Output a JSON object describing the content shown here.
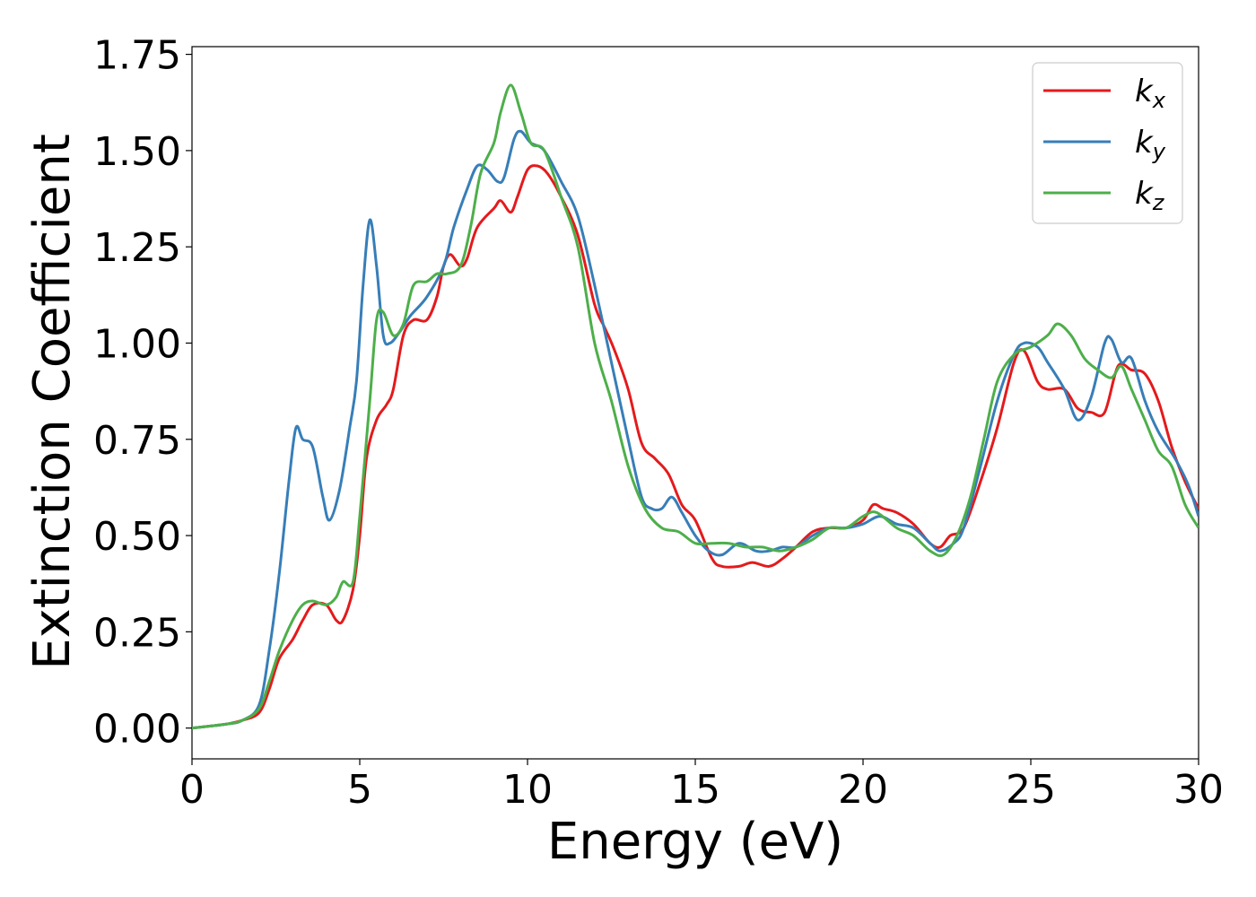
{
  "chart_data": {
    "type": "line",
    "xlabel": "Energy (eV)",
    "ylabel": "Extinction Coefficient",
    "xlim": [
      0,
      30
    ],
    "ylim": [
      -0.08,
      1.77
    ],
    "xticks": [
      0,
      5,
      10,
      15,
      20,
      25,
      30
    ],
    "xtick_labels": [
      "0",
      "5",
      "10",
      "15",
      "20",
      "25",
      "30"
    ],
    "yticks": [
      0,
      0.25,
      0.5,
      0.75,
      1.0,
      1.25,
      1.5,
      1.75
    ],
    "ytick_labels": [
      "0.00",
      "0.25",
      "0.50",
      "0.75",
      "1.00",
      "1.25",
      "1.50",
      "1.75"
    ],
    "grid": false,
    "legend_position": "top-right",
    "series": [
      {
        "name": "k_x",
        "label_base": "k",
        "label_sub": "x",
        "color": "#e41a1c",
        "points": [
          [
            0,
            0
          ],
          [
            1,
            0.01
          ],
          [
            1.5,
            0.02
          ],
          [
            2,
            0.04
          ],
          [
            2.3,
            0.1
          ],
          [
            2.6,
            0.18
          ],
          [
            3,
            0.23
          ],
          [
            3.3,
            0.28
          ],
          [
            3.6,
            0.32
          ],
          [
            4,
            0.32
          ],
          [
            4.3,
            0.28
          ],
          [
            4.5,
            0.28
          ],
          [
            4.8,
            0.36
          ],
          [
            5,
            0.5
          ],
          [
            5.2,
            0.7
          ],
          [
            5.5,
            0.8
          ],
          [
            5.8,
            0.84
          ],
          [
            6,
            0.88
          ],
          [
            6.3,
            1.02
          ],
          [
            6.6,
            1.06
          ],
          [
            7,
            1.06
          ],
          [
            7.3,
            1.12
          ],
          [
            7.5,
            1.2
          ],
          [
            7.7,
            1.23
          ],
          [
            8,
            1.2
          ],
          [
            8.2,
            1.22
          ],
          [
            8.5,
            1.3
          ],
          [
            9,
            1.35
          ],
          [
            9.2,
            1.37
          ],
          [
            9.5,
            1.34
          ],
          [
            9.7,
            1.38
          ],
          [
            10,
            1.45
          ],
          [
            10.3,
            1.46
          ],
          [
            10.6,
            1.44
          ],
          [
            11,
            1.38
          ],
          [
            11.5,
            1.28
          ],
          [
            12,
            1.1
          ],
          [
            12.3,
            1.04
          ],
          [
            12.6,
            0.98
          ],
          [
            13,
            0.88
          ],
          [
            13.4,
            0.74
          ],
          [
            13.8,
            0.7
          ],
          [
            14.2,
            0.66
          ],
          [
            14.6,
            0.58
          ],
          [
            15,
            0.54
          ],
          [
            15.5,
            0.44
          ],
          [
            15.8,
            0.42
          ],
          [
            16.3,
            0.42
          ],
          [
            16.7,
            0.43
          ],
          [
            17.2,
            0.42
          ],
          [
            17.6,
            0.44
          ],
          [
            18,
            0.47
          ],
          [
            18.5,
            0.51
          ],
          [
            19,
            0.52
          ],
          [
            19.5,
            0.52
          ],
          [
            20,
            0.54
          ],
          [
            20.3,
            0.58
          ],
          [
            20.6,
            0.57
          ],
          [
            21,
            0.56
          ],
          [
            21.5,
            0.53
          ],
          [
            22,
            0.48
          ],
          [
            22.3,
            0.47
          ],
          [
            22.6,
            0.5
          ],
          [
            23,
            0.52
          ],
          [
            23.5,
            0.64
          ],
          [
            24,
            0.78
          ],
          [
            24.5,
            0.95
          ],
          [
            24.8,
            0.98
          ],
          [
            25.2,
            0.9
          ],
          [
            25.5,
            0.88
          ],
          [
            26,
            0.88
          ],
          [
            26.4,
            0.83
          ],
          [
            26.8,
            0.82
          ],
          [
            27.2,
            0.82
          ],
          [
            27.6,
            0.94
          ],
          [
            28,
            0.93
          ],
          [
            28.4,
            0.92
          ],
          [
            28.8,
            0.85
          ],
          [
            29.2,
            0.73
          ],
          [
            29.6,
            0.64
          ],
          [
            30,
            0.57
          ]
        ]
      },
      {
        "name": "k_y",
        "label_base": "k",
        "label_sub": "y",
        "color": "#377eb8",
        "points": [
          [
            0,
            0
          ],
          [
            1,
            0.01
          ],
          [
            1.5,
            0.02
          ],
          [
            2,
            0.06
          ],
          [
            2.3,
            0.2
          ],
          [
            2.6,
            0.4
          ],
          [
            2.9,
            0.65
          ],
          [
            3.1,
            0.78
          ],
          [
            3.3,
            0.75
          ],
          [
            3.6,
            0.73
          ],
          [
            3.9,
            0.6
          ],
          [
            4.1,
            0.54
          ],
          [
            4.4,
            0.62
          ],
          [
            4.7,
            0.78
          ],
          [
            4.9,
            0.9
          ],
          [
            5.1,
            1.15
          ],
          [
            5.3,
            1.32
          ],
          [
            5.5,
            1.2
          ],
          [
            5.7,
            1.02
          ],
          [
            5.9,
            1.0
          ],
          [
            6.2,
            1.03
          ],
          [
            6.5,
            1.07
          ],
          [
            7,
            1.12
          ],
          [
            7.5,
            1.2
          ],
          [
            7.8,
            1.3
          ],
          [
            8.2,
            1.4
          ],
          [
            8.5,
            1.46
          ],
          [
            8.8,
            1.45
          ],
          [
            9.1,
            1.42
          ],
          [
            9.3,
            1.43
          ],
          [
            9.6,
            1.53
          ],
          [
            9.8,
            1.55
          ],
          [
            10.1,
            1.52
          ],
          [
            10.5,
            1.5
          ],
          [
            11,
            1.42
          ],
          [
            11.5,
            1.33
          ],
          [
            12,
            1.15
          ],
          [
            12.5,
            0.95
          ],
          [
            13,
            0.75
          ],
          [
            13.4,
            0.6
          ],
          [
            13.7,
            0.57
          ],
          [
            14,
            0.57
          ],
          [
            14.3,
            0.6
          ],
          [
            14.6,
            0.56
          ],
          [
            15,
            0.5
          ],
          [
            15.4,
            0.46
          ],
          [
            15.8,
            0.45
          ],
          [
            16.3,
            0.48
          ],
          [
            16.8,
            0.46
          ],
          [
            17.2,
            0.46
          ],
          [
            17.6,
            0.47
          ],
          [
            18,
            0.47
          ],
          [
            18.5,
            0.5
          ],
          [
            19,
            0.52
          ],
          [
            19.5,
            0.52
          ],
          [
            20,
            0.53
          ],
          [
            20.5,
            0.55
          ],
          [
            21,
            0.53
          ],
          [
            21.5,
            0.52
          ],
          [
            22,
            0.48
          ],
          [
            22.3,
            0.46
          ],
          [
            22.7,
            0.48
          ],
          [
            23,
            0.52
          ],
          [
            23.5,
            0.68
          ],
          [
            24,
            0.85
          ],
          [
            24.5,
            0.97
          ],
          [
            24.8,
            1.0
          ],
          [
            25.2,
            0.99
          ],
          [
            25.5,
            0.95
          ],
          [
            26,
            0.88
          ],
          [
            26.4,
            0.8
          ],
          [
            26.8,
            0.86
          ],
          [
            27.2,
            1.0
          ],
          [
            27.4,
            1.01
          ],
          [
            27.7,
            0.95
          ],
          [
            28,
            0.96
          ],
          [
            28.4,
            0.85
          ],
          [
            28.8,
            0.77
          ],
          [
            29.3,
            0.7
          ],
          [
            29.7,
            0.63
          ],
          [
            30,
            0.55
          ]
        ]
      },
      {
        "name": "k_z",
        "label_base": "k",
        "label_sub": "z",
        "color": "#4daf4a",
        "points": [
          [
            0,
            0
          ],
          [
            1,
            0.01
          ],
          [
            1.5,
            0.02
          ],
          [
            2,
            0.05
          ],
          [
            2.3,
            0.12
          ],
          [
            2.6,
            0.2
          ],
          [
            3,
            0.28
          ],
          [
            3.3,
            0.32
          ],
          [
            3.6,
            0.33
          ],
          [
            4,
            0.32
          ],
          [
            4.3,
            0.34
          ],
          [
            4.5,
            0.38
          ],
          [
            4.8,
            0.38
          ],
          [
            5,
            0.55
          ],
          [
            5.3,
            0.85
          ],
          [
            5.5,
            1.06
          ],
          [
            5.7,
            1.08
          ],
          [
            6,
            1.02
          ],
          [
            6.3,
            1.05
          ],
          [
            6.6,
            1.15
          ],
          [
            7,
            1.16
          ],
          [
            7.3,
            1.18
          ],
          [
            7.6,
            1.18
          ],
          [
            8,
            1.2
          ],
          [
            8.3,
            1.3
          ],
          [
            8.6,
            1.44
          ],
          [
            9,
            1.52
          ],
          [
            9.2,
            1.6
          ],
          [
            9.5,
            1.67
          ],
          [
            9.8,
            1.6
          ],
          [
            10.1,
            1.52
          ],
          [
            10.5,
            1.5
          ],
          [
            11,
            1.38
          ],
          [
            11.5,
            1.25
          ],
          [
            12,
            1.0
          ],
          [
            12.5,
            0.85
          ],
          [
            13,
            0.68
          ],
          [
            13.5,
            0.57
          ],
          [
            14,
            0.52
          ],
          [
            14.5,
            0.51
          ],
          [
            15,
            0.48
          ],
          [
            15.5,
            0.48
          ],
          [
            16,
            0.48
          ],
          [
            16.5,
            0.47
          ],
          [
            17,
            0.47
          ],
          [
            17.5,
            0.46
          ],
          [
            18,
            0.47
          ],
          [
            18.5,
            0.49
          ],
          [
            19,
            0.52
          ],
          [
            19.5,
            0.52
          ],
          [
            20,
            0.55
          ],
          [
            20.4,
            0.56
          ],
          [
            21,
            0.52
          ],
          [
            21.5,
            0.5
          ],
          [
            22,
            0.46
          ],
          [
            22.4,
            0.45
          ],
          [
            22.8,
            0.5
          ],
          [
            23.2,
            0.6
          ],
          [
            23.6,
            0.75
          ],
          [
            24,
            0.9
          ],
          [
            24.5,
            0.97
          ],
          [
            25,
            0.99
          ],
          [
            25.5,
            1.02
          ],
          [
            25.8,
            1.05
          ],
          [
            26.2,
            1.02
          ],
          [
            26.6,
            0.96
          ],
          [
            27,
            0.93
          ],
          [
            27.4,
            0.91
          ],
          [
            27.7,
            0.94
          ],
          [
            28,
            0.88
          ],
          [
            28.4,
            0.8
          ],
          [
            28.8,
            0.72
          ],
          [
            29.2,
            0.68
          ],
          [
            29.6,
            0.58
          ],
          [
            30,
            0.52
          ]
        ]
      }
    ]
  }
}
